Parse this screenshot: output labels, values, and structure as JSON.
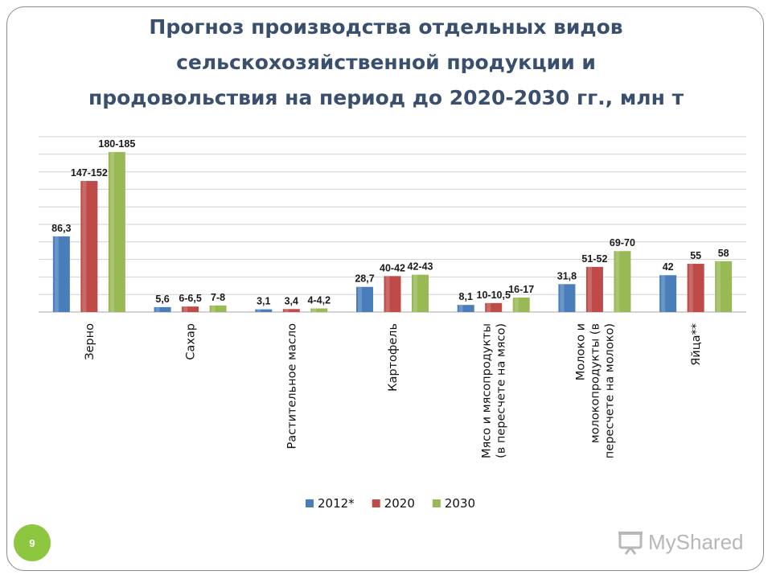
{
  "slide": {
    "title_lines": [
      "Прогноз производства отдельных видов",
      "сельскохозяйственной продукции и",
      "продовольствия на период до 2020-2030 гг., млн т"
    ],
    "page_number": "9",
    "watermark": "MyShared"
  },
  "chart_data": {
    "type": "bar",
    "title": "Прогноз производства отдельных видов сельскохозяйственной продукции и продовольствия на период до 2020-2030 гг., млн т",
    "categories": [
      [
        "Зерно"
      ],
      [
        "Сахар"
      ],
      [
        "Растительное масло"
      ],
      [
        "Картофель"
      ],
      [
        "Мясо и мясопродукты",
        "(в пересчете  на мясо)"
      ],
      [
        "Молоко и",
        "молокопродукты (в",
        "пересчете на молоко)"
      ],
      [
        "Яйца**"
      ]
    ],
    "series": [
      {
        "name": "2012*",
        "color": "#4a7ebb",
        "values": [
          86.3,
          5.6,
          3.1,
          28.7,
          8.1,
          31.8,
          42
        ],
        "labels": [
          "86,3",
          "5,6",
          "3,1",
          "28,7",
          "8,1",
          "31,8",
          "42"
        ]
      },
      {
        "name": "2020",
        "color": "#be4b48",
        "values": [
          149.5,
          6.25,
          3.4,
          41,
          10.25,
          51.5,
          55
        ],
        "labels": [
          "147-152",
          "6-6,5",
          "3,4",
          "40-42",
          "10-10,5",
          "51-52",
          "55"
        ]
      },
      {
        "name": "2030",
        "color": "#98b954",
        "values": [
          182.5,
          7.5,
          4.1,
          42.5,
          16.5,
          69.5,
          58
        ],
        "labels": [
          "180-185",
          "7-8",
          "4-4,2",
          "42-43",
          "16-17",
          "69-70",
          "58"
        ]
      }
    ],
    "ylim": [
      0,
      200
    ],
    "grid": true,
    "y_axis_labels_visible": false,
    "legend_position": "bottom"
  }
}
